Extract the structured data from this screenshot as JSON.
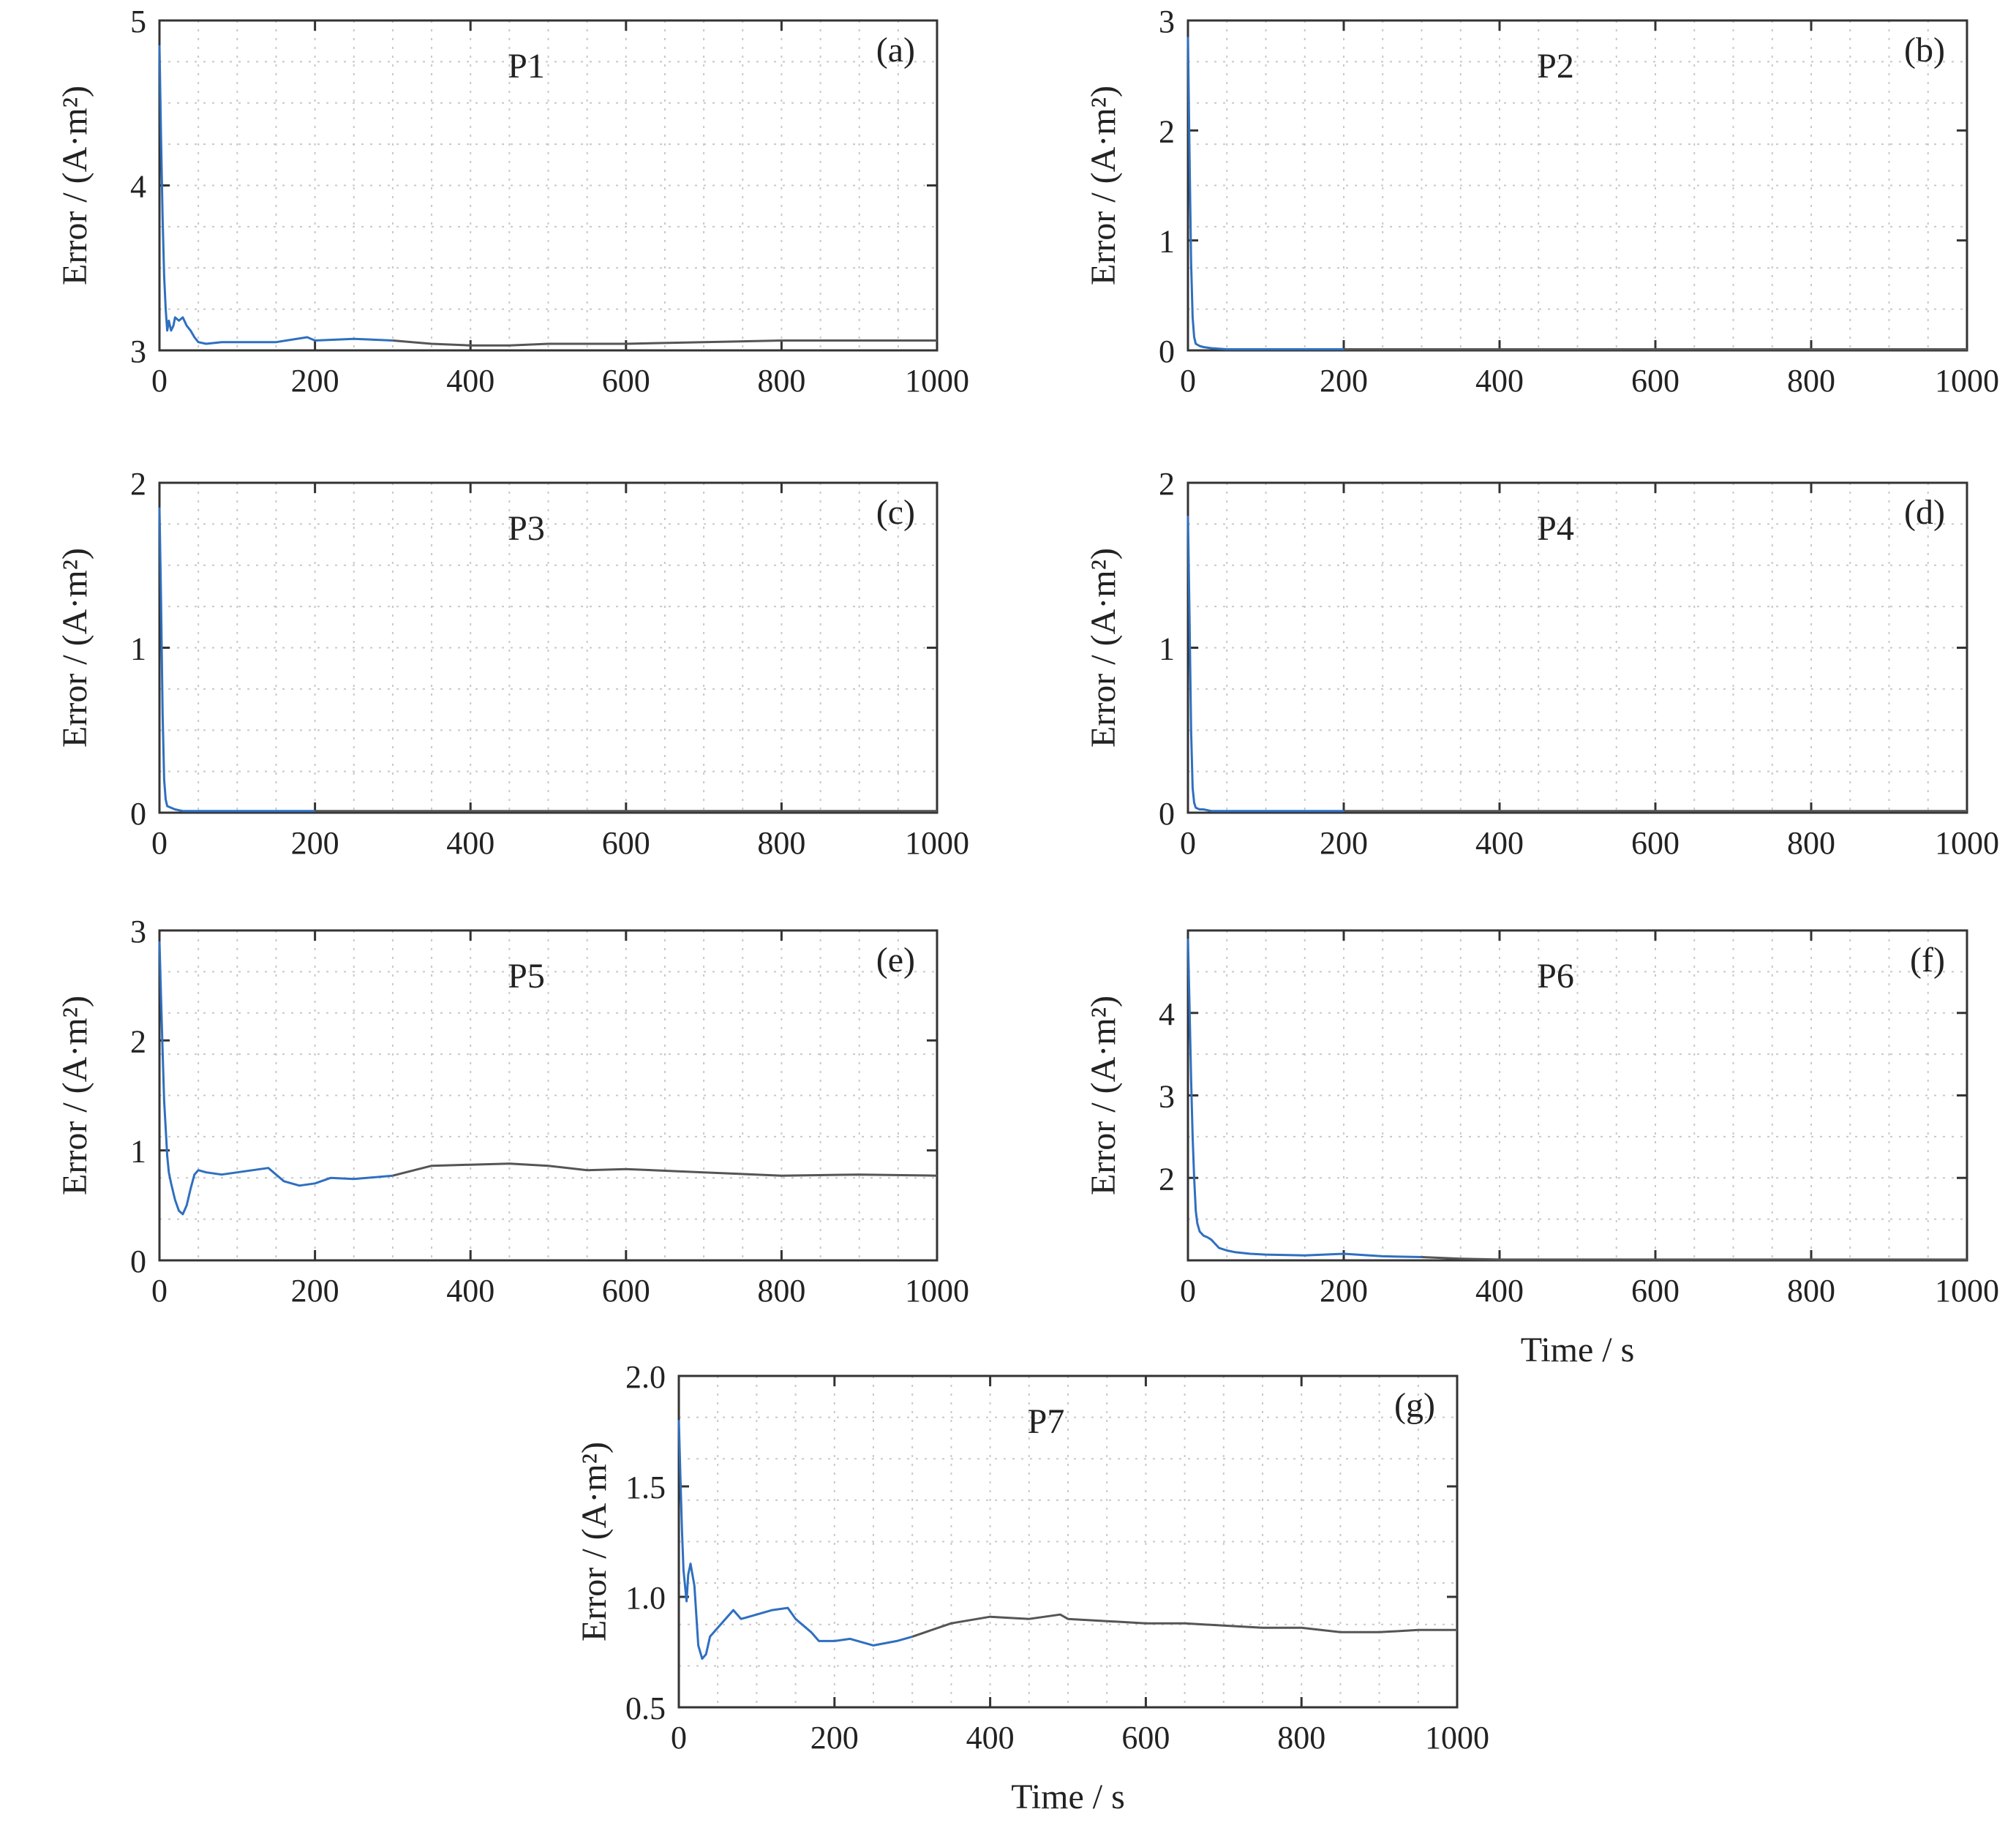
{
  "colors": {
    "series_early": "#2f6fc0",
    "series_late": "#555555",
    "axis": "#333333",
    "grid": "#c8c8c8"
  },
  "chart_data": [
    {
      "type": "line",
      "tag": "(a)",
      "title": "P1",
      "xlabel": "",
      "ylabel": "Error / (A·m²)",
      "xlim": [
        0,
        1000
      ],
      "ylim": [
        3,
        5
      ],
      "xticks": [
        0,
        200,
        400,
        600,
        800,
        1000
      ],
      "yticks": [
        3,
        4,
        5
      ],
      "grid": true,
      "x": [
        0,
        2,
        4,
        6,
        8,
        10,
        12,
        15,
        18,
        20,
        25,
        30,
        35,
        40,
        45,
        50,
        60,
        80,
        100,
        150,
        190,
        200,
        250,
        300,
        350,
        400,
        450,
        500,
        600,
        700,
        800,
        900,
        1000
      ],
      "y": [
        4.85,
        4.3,
        3.8,
        3.45,
        3.25,
        3.12,
        3.18,
        3.12,
        3.15,
        3.2,
        3.18,
        3.2,
        3.15,
        3.12,
        3.08,
        3.05,
        3.04,
        3.05,
        3.05,
        3.05,
        3.08,
        3.06,
        3.07,
        3.06,
        3.04,
        3.03,
        3.03,
        3.04,
        3.04,
        3.05,
        3.06,
        3.06,
        3.06
      ]
    },
    {
      "type": "line",
      "tag": "(b)",
      "title": "P2",
      "xlabel": "",
      "ylabel": "Error / (A·m²)",
      "xlim": [
        0,
        1000
      ],
      "ylim": [
        0,
        3
      ],
      "xticks": [
        0,
        200,
        400,
        600,
        800,
        1000
      ],
      "yticks": [
        0,
        1,
        2,
        3
      ],
      "grid": true,
      "x": [
        0,
        2,
        4,
        6,
        8,
        10,
        15,
        20,
        30,
        50,
        100,
        200,
        400,
        600,
        800,
        1000
      ],
      "y": [
        2.85,
        1.8,
        0.8,
        0.3,
        0.12,
        0.06,
        0.04,
        0.03,
        0.02,
        0.01,
        0.01,
        0.01,
        0.01,
        0.01,
        0.01,
        0.01
      ]
    },
    {
      "type": "line",
      "tag": "(c)",
      "title": "P3",
      "xlabel": "",
      "ylabel": "Error / (A·m²)",
      "xlim": [
        0,
        1000
      ],
      "ylim": [
        0,
        2
      ],
      "xticks": [
        0,
        200,
        400,
        600,
        800,
        1000
      ],
      "yticks": [
        0,
        1,
        2
      ],
      "grid": true,
      "x": [
        0,
        2,
        4,
        6,
        8,
        10,
        15,
        20,
        30,
        50,
        100,
        200,
        400,
        600,
        800,
        1000
      ],
      "y": [
        1.85,
        1.3,
        0.6,
        0.2,
        0.08,
        0.04,
        0.03,
        0.02,
        0.01,
        0.01,
        0.01,
        0.01,
        0.01,
        0.01,
        0.01,
        0.01
      ]
    },
    {
      "type": "line",
      "tag": "(d)",
      "title": "P4",
      "xlabel": "",
      "ylabel": "Error / (A·m²)",
      "xlim": [
        0,
        1000
      ],
      "ylim": [
        0,
        2
      ],
      "xticks": [
        0,
        200,
        400,
        600,
        800,
        1000
      ],
      "yticks": [
        0,
        1,
        2
      ],
      "grid": true,
      "x": [
        0,
        2,
        4,
        6,
        8,
        10,
        15,
        20,
        30,
        50,
        100,
        200,
        400,
        600,
        800,
        1000
      ],
      "y": [
        1.8,
        1.2,
        0.5,
        0.15,
        0.06,
        0.03,
        0.02,
        0.02,
        0.01,
        0.01,
        0.01,
        0.01,
        0.01,
        0.01,
        0.01,
        0.01
      ]
    },
    {
      "type": "line",
      "tag": "(e)",
      "title": "P5",
      "xlabel": "",
      "ylabel": "Error / (A·m²)",
      "xlim": [
        0,
        1000
      ],
      "ylim": [
        0,
        3
      ],
      "xticks": [
        0,
        200,
        400,
        600,
        800,
        1000
      ],
      "yticks": [
        0,
        1,
        2,
        3
      ],
      "grid": true,
      "x": [
        0,
        2,
        4,
        6,
        8,
        10,
        12,
        15,
        20,
        25,
        30,
        35,
        40,
        45,
        50,
        60,
        80,
        100,
        120,
        140,
        160,
        180,
        200,
        220,
        250,
        300,
        350,
        400,
        450,
        500,
        550,
        600,
        700,
        800,
        900,
        1000
      ],
      "y": [
        2.9,
        2.4,
        1.9,
        1.45,
        1.2,
        0.95,
        0.8,
        0.7,
        0.55,
        0.45,
        0.42,
        0.5,
        0.65,
        0.78,
        0.82,
        0.8,
        0.78,
        0.8,
        0.82,
        0.84,
        0.72,
        0.68,
        0.7,
        0.75,
        0.74,
        0.77,
        0.86,
        0.87,
        0.88,
        0.86,
        0.82,
        0.83,
        0.8,
        0.77,
        0.78,
        0.77
      ]
    },
    {
      "type": "line",
      "tag": "(f)",
      "title": "P6",
      "xlabel": "Time / s",
      "ylabel": "Error / (A·m²)",
      "xlim": [
        0,
        1000
      ],
      "ylim": [
        1,
        5
      ],
      "xticks": [
        0,
        200,
        400,
        600,
        800,
        1000
      ],
      "yticks": [
        2,
        3,
        4
      ],
      "grid": true,
      "x": [
        0,
        2,
        4,
        6,
        8,
        10,
        12,
        15,
        20,
        25,
        30,
        35,
        40,
        50,
        60,
        80,
        100,
        150,
        200,
        250,
        300,
        350,
        400,
        500,
        600,
        700,
        800,
        900,
        1000
      ],
      "y": [
        4.9,
        4.1,
        3.2,
        2.5,
        2.0,
        1.6,
        1.45,
        1.35,
        1.3,
        1.28,
        1.25,
        1.2,
        1.15,
        1.12,
        1.1,
        1.08,
        1.07,
        1.06,
        1.08,
        1.05,
        1.04,
        1.02,
        1.01,
        1.01,
        1.01,
        1.01,
        1.01,
        1.01,
        1.01
      ]
    },
    {
      "type": "line",
      "tag": "(g)",
      "title": "P7",
      "xlabel": "Time / s",
      "ylabel": "Error / (A·m²)",
      "xlim": [
        0,
        1000
      ],
      "ylim": [
        0.5,
        2.0
      ],
      "xticks": [
        0,
        200,
        400,
        600,
        800,
        1000
      ],
      "yticks": [
        0.5,
        1.0,
        1.5,
        2.0
      ],
      "ytick_labels": [
        "0.5",
        "1.0",
        "1.5",
        "2.0"
      ],
      "grid": true,
      "x": [
        0,
        2,
        4,
        6,
        8,
        10,
        12,
        15,
        20,
        25,
        30,
        35,
        40,
        50,
        60,
        70,
        80,
        100,
        120,
        140,
        150,
        170,
        180,
        200,
        220,
        250,
        280,
        300,
        350,
        400,
        450,
        490,
        500,
        550,
        600,
        650,
        700,
        750,
        800,
        850,
        900,
        950,
        1000
      ],
      "y": [
        1.8,
        1.55,
        1.3,
        1.12,
        1.05,
        0.98,
        1.1,
        1.15,
        1.05,
        0.78,
        0.72,
        0.74,
        0.82,
        0.86,
        0.9,
        0.94,
        0.9,
        0.92,
        0.94,
        0.95,
        0.9,
        0.84,
        0.8,
        0.8,
        0.81,
        0.78,
        0.8,
        0.82,
        0.88,
        0.91,
        0.9,
        0.92,
        0.9,
        0.89,
        0.88,
        0.88,
        0.87,
        0.86,
        0.86,
        0.84,
        0.84,
        0.85,
        0.85
      ]
    }
  ]
}
